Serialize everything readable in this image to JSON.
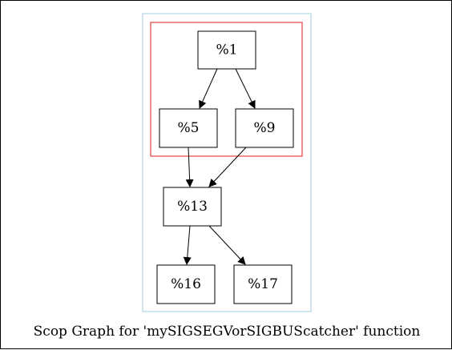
{
  "caption": "Scop Graph for 'mySIGSEGVorSIGBUScatcher' function",
  "nodes": {
    "n1": "%1",
    "n5": "%5",
    "n9": "%9",
    "n13": "%13",
    "n16": "%16",
    "n17": "%17"
  },
  "colors": {
    "outer_cluster": "#a6cee3",
    "scop_region": "#e31a1c",
    "node_border": "#000000",
    "edge": "#000000"
  }
}
